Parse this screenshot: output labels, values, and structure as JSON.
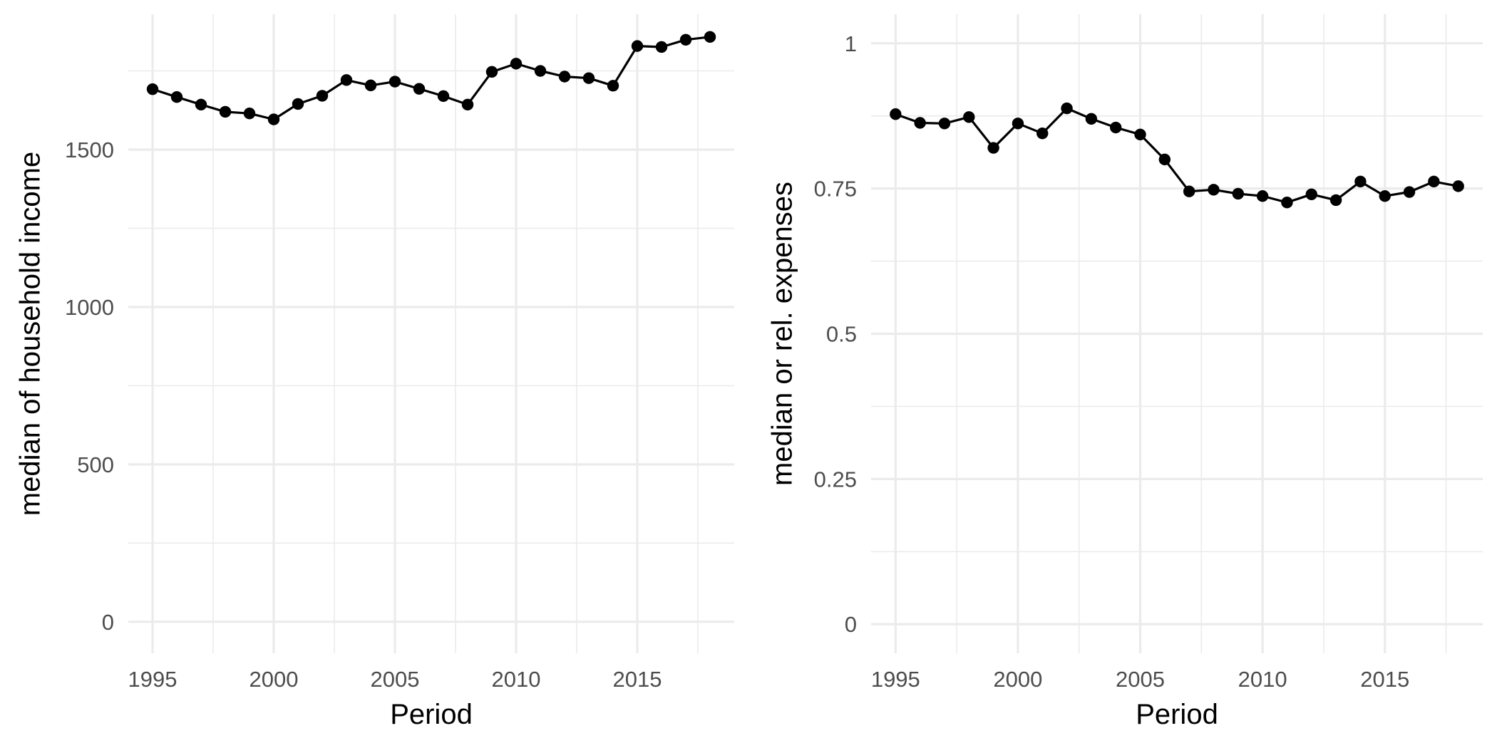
{
  "chart_data": [
    {
      "type": "line",
      "title": "",
      "xlabel": "Period",
      "ylabel": "median of household income",
      "xlim": [
        1994,
        2019
      ],
      "ylim": [
        -100,
        1930
      ],
      "x_ticks": [
        1995,
        2000,
        2005,
        2010,
        2015
      ],
      "x_tick_labels": [
        "1995",
        "2000",
        "2005",
        "2010",
        "2015"
      ],
      "y_ticks": [
        0,
        500,
        1000,
        1500
      ],
      "y_tick_labels": [
        "0",
        "500",
        "1000",
        "1500"
      ],
      "grid": true,
      "series": [
        {
          "x": [
            1995,
            1996,
            1997,
            1998,
            1999,
            2000,
            2001,
            2002,
            2003,
            2004,
            2005,
            2006,
            2007,
            2008,
            2009,
            2010,
            2011,
            2012,
            2013,
            2014,
            2015,
            2016,
            2017,
            2018
          ],
          "values": [
            1692,
            1667,
            1643,
            1620,
            1615,
            1596,
            1645,
            1671,
            1721,
            1704,
            1716,
            1693,
            1670,
            1643,
            1747,
            1773,
            1750,
            1732,
            1727,
            1703,
            1829,
            1826,
            1849,
            1858
          ]
        }
      ]
    },
    {
      "type": "line",
      "title": "",
      "xlabel": "Period",
      "ylabel": "median or rel. expenses",
      "xlim": [
        1994,
        2019
      ],
      "ylim": [
        -0.05,
        1.05
      ],
      "x_ticks": [
        1995,
        2000,
        2005,
        2010,
        2015
      ],
      "x_tick_labels": [
        "1995",
        "2000",
        "2005",
        "2010",
        "2015"
      ],
      "y_ticks": [
        0,
        0.25,
        0.5,
        0.75,
        1
      ],
      "y_tick_labels": [
        "0",
        "0.25",
        "0.5",
        "0.75",
        "1"
      ],
      "grid": true,
      "series": [
        {
          "x": [
            1995,
            1996,
            1997,
            1998,
            1999,
            2000,
            2001,
            2002,
            2003,
            2004,
            2005,
            2006,
            2007,
            2008,
            2009,
            2010,
            2011,
            2012,
            2013,
            2014,
            2015,
            2016,
            2017,
            2018
          ],
          "values": [
            0.878,
            0.863,
            0.862,
            0.873,
            0.82,
            0.862,
            0.845,
            0.888,
            0.87,
            0.855,
            0.843,
            0.8,
            0.745,
            0.748,
            0.741,
            0.737,
            0.726,
            0.74,
            0.73,
            0.762,
            0.737,
            0.744,
            0.762,
            0.754
          ]
        }
      ]
    }
  ]
}
